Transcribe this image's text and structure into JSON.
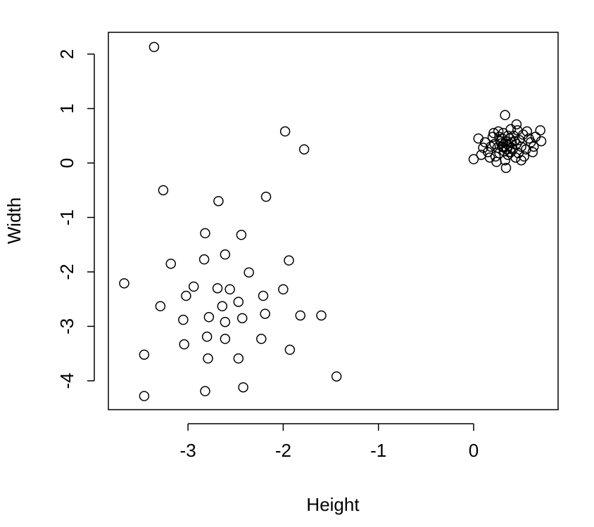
{
  "chart_data": {
    "type": "scatter",
    "x_label": "Height",
    "y_label": "Width",
    "color": "#000000",
    "xlim": [
      -3.836,
      0.887
    ],
    "ylim": [
      -4.53,
      2.4
    ],
    "xticks": [
      -3,
      -2,
      -1,
      0
    ],
    "yticks": [
      -4,
      -3,
      -2,
      -1,
      0,
      1,
      2
    ],
    "x": [
      -3.356,
      -1.98,
      -1.78,
      -3.26,
      -2.68,
      -2.18,
      -2.82,
      -2.44,
      -2.61,
      -2.83,
      -1.94,
      -3.18,
      -2.36,
      -3.67,
      -2.94,
      -2.69,
      -2.56,
      -2.0,
      -3.02,
      -2.21,
      -2.47,
      -3.29,
      -2.64,
      -2.19,
      -1.82,
      -1.6,
      -2.78,
      -2.43,
      -3.05,
      -2.61,
      -2.8,
      -2.61,
      -2.23,
      -3.04,
      -1.93,
      -3.46,
      -2.79,
      -2.47,
      -1.44,
      -2.42,
      -2.82,
      -3.46,
      0.0,
      0.7,
      0.71,
      0.33,
      0.34,
      0.45,
      0.05,
      0.3,
      0.35,
      0.4,
      0.28,
      0.38,
      0.32,
      0.45,
      0.25,
      0.42,
      0.36,
      0.5,
      0.22,
      0.31,
      0.48,
      0.27,
      0.55,
      0.18,
      0.39,
      0.33,
      0.6,
      0.15,
      0.44,
      0.26,
      0.52,
      0.2,
      0.37,
      0.34,
      0.29,
      0.41,
      0.58,
      0.12,
      0.47,
      0.23,
      0.36,
      0.53,
      0.3,
      0.63,
      0.1,
      0.43,
      0.21,
      0.56,
      0.32,
      0.39,
      0.17,
      0.46,
      0.27,
      0.5,
      0.35,
      0.62,
      0.24,
      0.4,
      0.08,
      0.65
    ],
    "values": [
      2.13,
      0.58,
      0.25,
      -0.5,
      -0.7,
      -0.62,
      -1.29,
      -1.32,
      -1.68,
      -1.77,
      -1.79,
      -1.85,
      -2.01,
      -2.21,
      -2.27,
      -2.3,
      -2.32,
      -2.32,
      -2.44,
      -2.44,
      -2.55,
      -2.63,
      -2.63,
      -2.77,
      -2.8,
      -2.8,
      -2.83,
      -2.85,
      -2.88,
      -2.92,
      -3.19,
      -3.23,
      -3.23,
      -3.33,
      -3.43,
      -3.52,
      -3.59,
      -3.59,
      -3.92,
      -4.12,
      -4.19,
      -4.28,
      0.07,
      0.6,
      0.4,
      0.88,
      -0.09,
      0.71,
      0.45,
      0.3,
      0.35,
      0.28,
      0.4,
      0.45,
      0.22,
      0.35,
      0.28,
      0.5,
      0.15,
      0.3,
      0.35,
      0.55,
      0.42,
      0.18,
      0.25,
      0.3,
      0.62,
      0.05,
      0.38,
      0.2,
      0.1,
      0.58,
      0.52,
      0.48,
      0.32,
      0.4,
      0.36,
      0.25,
      0.45,
      0.38,
      0.18,
      0.12,
      0.5,
      0.12,
      0.45,
      0.3,
      0.28,
      0.4,
      0.55,
      0.58,
      0.28,
      0.2,
      0.1,
      0.6,
      0.48,
      0.05,
      0.25,
      0.2,
      0.02,
      0.38,
      0.15,
      0.48
    ]
  }
}
